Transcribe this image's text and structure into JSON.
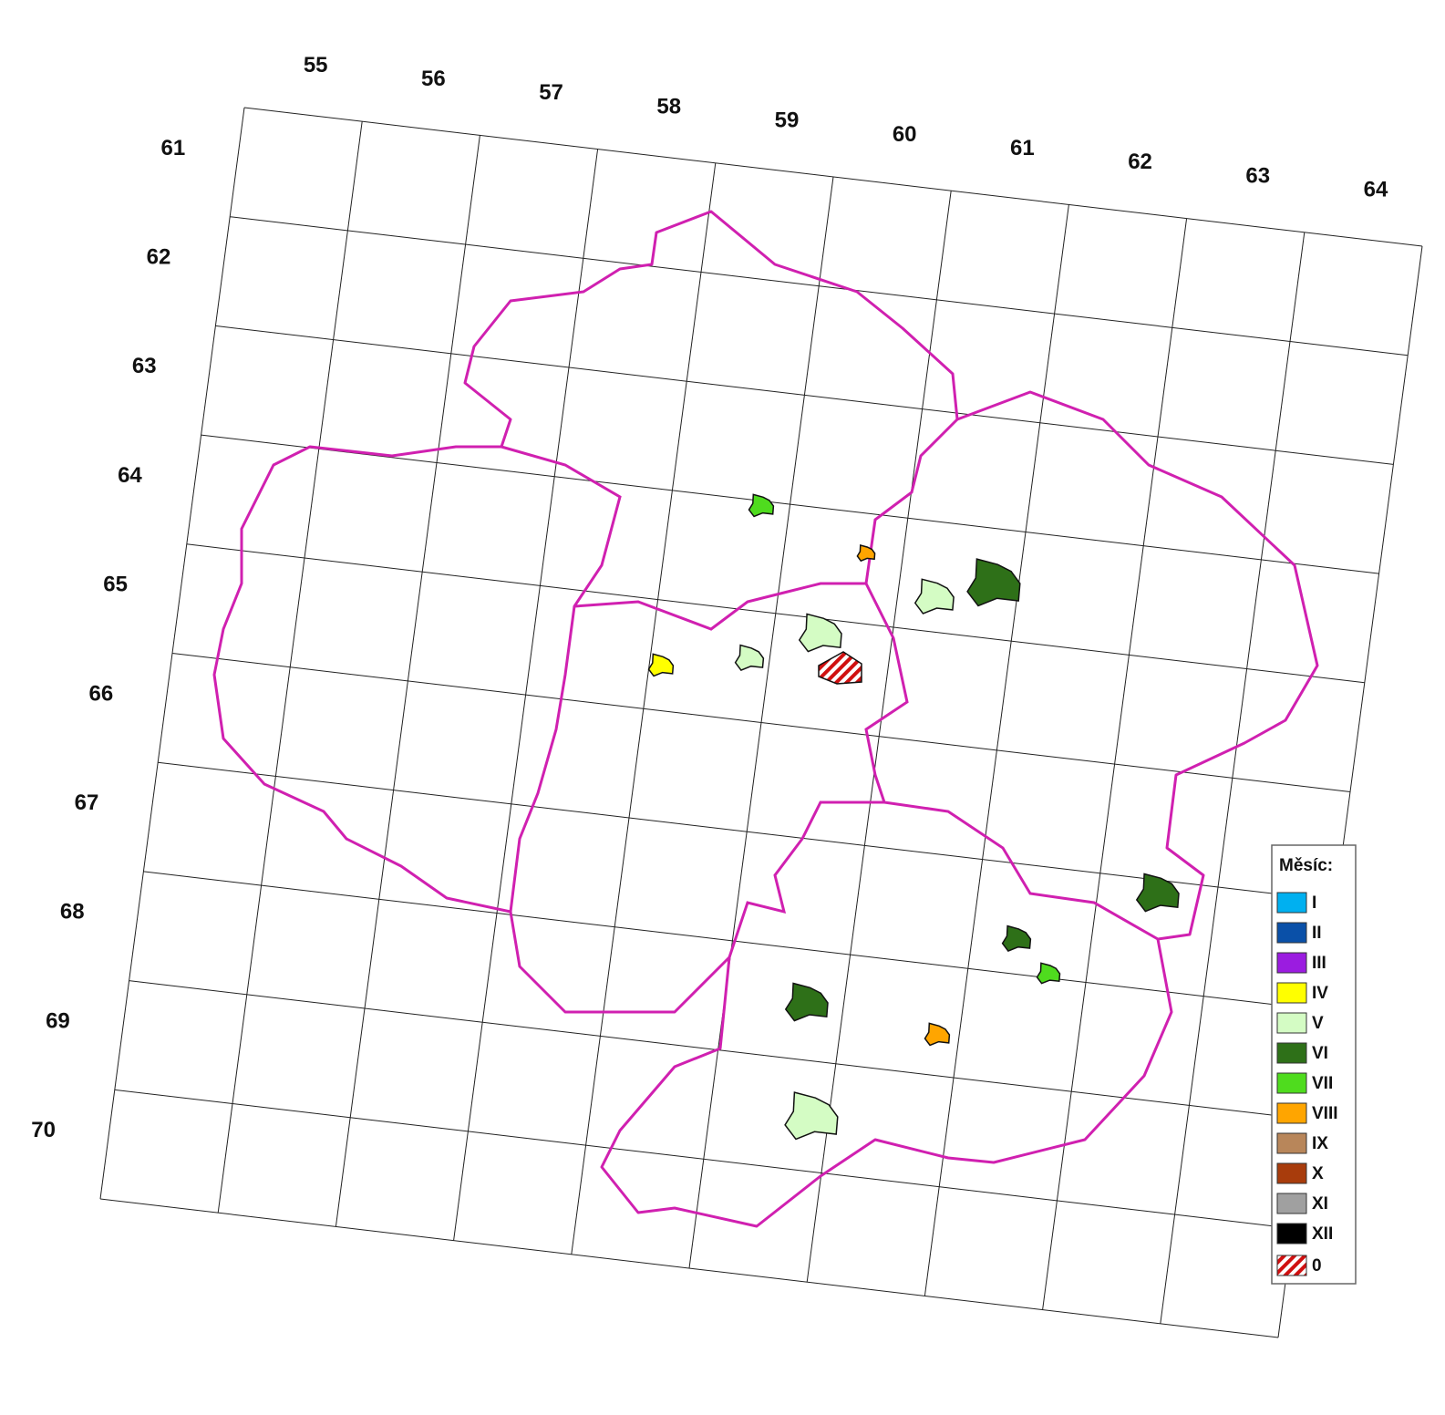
{
  "map": {
    "column_labels": [
      "55",
      "56",
      "57",
      "58",
      "59",
      "60",
      "61",
      "62",
      "63",
      "64"
    ],
    "row_labels": [
      "61",
      "62",
      "63",
      "64",
      "65",
      "66",
      "67",
      "68",
      "69",
      "70"
    ],
    "legend": {
      "title": "Měsíc:",
      "items": [
        {
          "label": "I",
          "color": "#00b0f0"
        },
        {
          "label": "II",
          "color": "#0a50a8"
        },
        {
          "label": "III",
          "color": "#9b1ce0"
        },
        {
          "label": "IV",
          "color": "#ffff00"
        },
        {
          "label": "V",
          "color": "#d4fcc4"
        },
        {
          "label": "VI",
          "color": "#2e7018"
        },
        {
          "label": "VII",
          "color": "#4fdc1e"
        },
        {
          "label": "VIII",
          "color": "#ffa500"
        },
        {
          "label": "IX",
          "color": "#b8865a"
        },
        {
          "label": "X",
          "color": "#a83c0c"
        },
        {
          "label": "XI",
          "color": "#a0a0a0"
        },
        {
          "label": "XII",
          "color": "#000000"
        }
      ],
      "hatched_label": "0"
    }
  }
}
